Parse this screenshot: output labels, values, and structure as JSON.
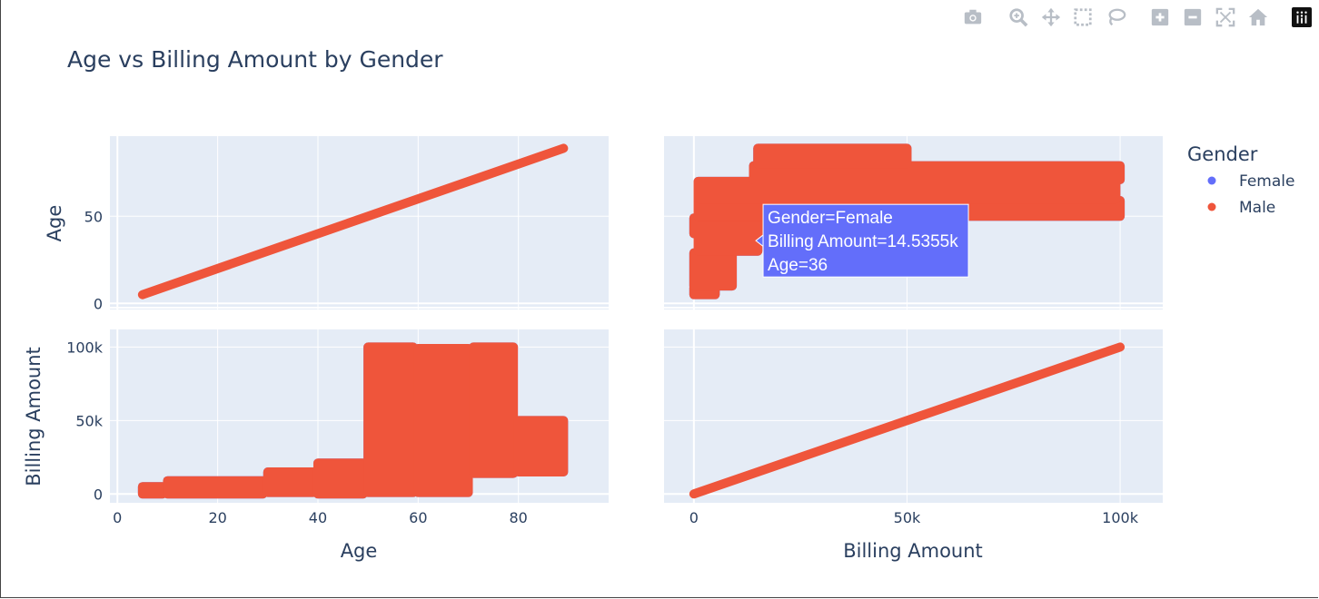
{
  "colors": {
    "female": "#636efa",
    "male": "#ef553b",
    "plot_bg": "#e5ecf6",
    "text": "#2a3f5f"
  },
  "toolbar": {
    "icons": [
      "camera-icon",
      "zoom-icon",
      "pan-icon",
      "box-select-icon",
      "lasso-select-icon",
      "zoom-in-icon",
      "zoom-out-icon",
      "autoscale-icon",
      "reset-axes-icon",
      "plotly-logo-icon"
    ]
  },
  "chart_data": {
    "type": "scatter",
    "title": "Age vs Billing Amount by Gender",
    "layout": "scatter-matrix 2x2",
    "dimensions": [
      "Age",
      "Billing Amount"
    ],
    "legend": {
      "title": "Gender",
      "position": "top-right",
      "entries": [
        "Female",
        "Male"
      ]
    },
    "grid": true,
    "axes": {
      "age": {
        "label": "Age",
        "range": [
          -1.5,
          98
        ],
        "ticks": [
          0,
          20,
          40,
          60,
          80
        ],
        "tick_labels": [
          "0",
          "20",
          "40",
          "60",
          "80"
        ],
        "y_ticks": [
          0,
          50
        ],
        "y_tick_labels": [
          "0",
          "50"
        ],
        "y_range": [
          -3.5,
          96
        ]
      },
      "billing": {
        "label": "Billing Amount",
        "range": [
          -7000,
          110000
        ],
        "ticks": [
          0,
          50000,
          100000
        ],
        "tick_labels": [
          "0",
          "50k",
          "100k"
        ],
        "y_range": [
          -6000,
          112000
        ],
        "y_ticks": [
          0,
          50000,
          100000
        ],
        "y_tick_labels": [
          "0",
          "50k",
          "100k"
        ]
      }
    },
    "series": [
      {
        "name": "Female",
        "age_billing_blocks": [
          {
            "age": [
              5,
              9
            ],
            "billing": [
              0,
              5000
            ]
          },
          {
            "age": [
              10,
              29
            ],
            "billing": [
              0,
              9000
            ]
          },
          {
            "age": [
              30,
              39
            ],
            "billing": [
              1000,
              15000
            ]
          },
          {
            "age": [
              40,
              49
            ],
            "billing": [
              0,
              21000
            ]
          },
          {
            "age": [
              50,
              59
            ],
            "billing": [
              1000,
              100000
            ]
          },
          {
            "age": [
              60,
              70
            ],
            "billing": [
              1000,
              99000
            ]
          },
          {
            "age": [
              71,
              79
            ],
            "billing": [
              14000,
              100000
            ]
          },
          {
            "age": [
              80,
              89
            ],
            "billing": [
              15000,
              50000
            ]
          }
        ]
      },
      {
        "name": "Male",
        "age_billing_blocks": [
          {
            "age": [
              5,
              9
            ],
            "billing": [
              0,
              5000
            ]
          },
          {
            "age": [
              10,
              29
            ],
            "billing": [
              0,
              9000
            ]
          },
          {
            "age": [
              30,
              39
            ],
            "billing": [
              1000,
              15000
            ]
          },
          {
            "age": [
              40,
              49
            ],
            "billing": [
              0,
              21000
            ]
          },
          {
            "age": [
              50,
              59
            ],
            "billing": [
              1000,
              100000
            ]
          },
          {
            "age": [
              60,
              70
            ],
            "billing": [
              1000,
              99000
            ]
          },
          {
            "age": [
              71,
              79
            ],
            "billing": [
              14000,
              100000
            ]
          },
          {
            "age": [
              80,
              89
            ],
            "billing": [
              15000,
              50000
            ]
          }
        ]
      }
    ],
    "hover": {
      "lines": [
        "Gender=Female",
        "Billing Amount=14.5355k",
        "Age=36"
      ],
      "gender": "Female",
      "billing": 14535.5,
      "age": 36
    }
  }
}
